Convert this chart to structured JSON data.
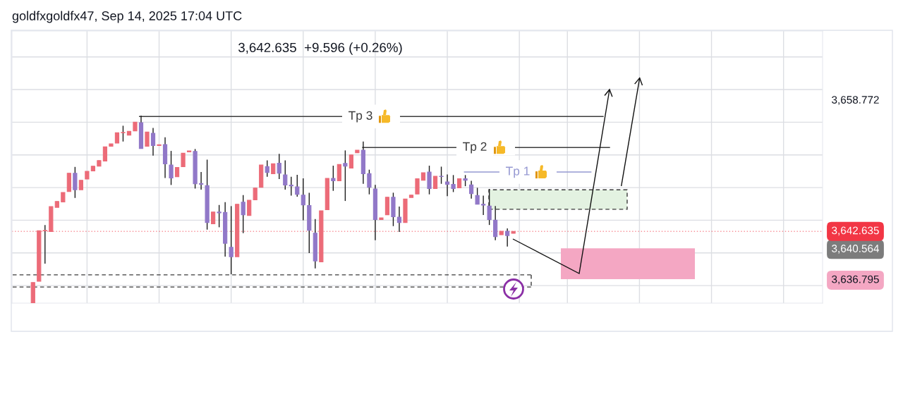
{
  "chart_data": {
    "type": "candlestick",
    "title": "goldfxgoldfx47, Sep 14, 2025 17:04 UTC",
    "annotations": [
      "3,642.635  +9.596 (+0.26%)"
    ],
    "categories": [
      null,
      null,
      null,
      null,
      null,
      null,
      null,
      null,
      null,
      null,
      null,
      null,
      null,
      null,
      null,
      null,
      null,
      null,
      null,
      null,
      null,
      null,
      null,
      null,
      null,
      null,
      null,
      null,
      null,
      null,
      null,
      null,
      null,
      null,
      null,
      null,
      null,
      null,
      null,
      null,
      null,
      null,
      null,
      null,
      null,
      null,
      null,
      null,
      null,
      null,
      null,
      null,
      null,
      null,
      null,
      null,
      null,
      null,
      null,
      null,
      null,
      null,
      null,
      null,
      null,
      null,
      null,
      null,
      null,
      null,
      null,
      null,
      null,
      null,
      null,
      null,
      null,
      null,
      null,
      null,
      null,
      null,
      null,
      null,
      null,
      null,
      null,
      null,
      null,
      null,
      null,
      null,
      null,
      null,
      null,
      null,
      null,
      null,
      null,
      null,
      null,
      null,
      null,
      null,
      null,
      null,
      null,
      null,
      null,
      null,
      null,
      null,
      null,
      null,
      null,
      null,
      null,
      null,
      null,
      null,
      null,
      null,
      null,
      null,
      null,
      null,
      null,
      null,
      null,
      null,
      null,
      null,
      null,
      null,
      null
    ],
    "ohlc": [
      null,
      null,
      null,
      [
        3633.9,
        3636.37,
        3633.9,
        3636.37
      ],
      [
        3636.52,
        3642.71,
        3636.52,
        3642.71
      ],
      [
        3642.7,
        3643.42,
        3638.68,
        3642.75
      ],
      [
        3642.62,
        3645.67,
        3642.62,
        3645.67
      ],
      [
        3645.58,
        3646.3,
        3645.58,
        3646.3
      ],
      [
        3646.24,
        3647.4,
        3646.24,
        3647.4
      ],
      [
        3647.51,
        3649.76,
        3647.51,
        3649.76
      ],
      [
        3649.76,
        3650.53,
        3646.73,
        3647.74
      ],
      [
        3647.74,
        3648.89,
        3647.74,
        3648.89
      ],
      [
        3649.04,
        3649.99,
        3649.04,
        3649.99
      ],
      [
        3650.04,
        3650.62,
        3650.04,
        3650.62
      ],
      [
        3650.62,
        3651.31,
        3650.62,
        3651.31
      ],
      [
        3651.25,
        3652.98,
        3651.25,
        3652.98
      ],
      [
        3653.06,
        3653.35,
        3653.06,
        3653.35
      ],
      [
        3653.44,
        3654.71,
        3653.44,
        3654.71
      ],
      [
        3654.71,
        3655.57,
        3653.64,
        3654.75
      ],
      [
        3654.42,
        3654.88,
        3654.42,
        3654.88
      ],
      [
        3654.94,
        3656.0,
        3654.94,
        3656.0
      ],
      [
        3655.94,
        3656.81,
        3652.78,
        3652.78
      ],
      [
        3653.06,
        3654.79,
        3653.06,
        3654.79
      ],
      [
        3654.65,
        3655.31,
        3651.91,
        3653.15
      ],
      [
        3653.15,
        3653.25,
        3653.15,
        3653.25
      ],
      [
        3653.27,
        3654.16,
        3649.18,
        3650.91
      ],
      [
        3650.76,
        3652.49,
        3648.32,
        3649.18
      ],
      [
        3649.32,
        3650.47,
        3649.32,
        3650.47
      ],
      [
        3650.56,
        3652.2,
        3650.56,
        3652.2
      ],
      [
        3652.38,
        3652.48,
        3652.38,
        3652.48
      ],
      [
        3652.43,
        3652.72,
        3647.88,
        3648.46
      ],
      [
        3648.5,
        3649.9,
        3647.74,
        3648.4
      ],
      [
        3648.23,
        3651.42,
        3642.85,
        3643.71
      ],
      [
        3643.57,
        3645.01,
        3643.57,
        3645.01
      ],
      [
        3645.0,
        3645.87,
        3643.14,
        3644.9
      ],
      [
        3644.95,
        3646.22,
        3639.54,
        3641.18
      ],
      [
        3640.69,
        3645.73,
        3637.38,
        3639.54
      ],
      [
        3639.54,
        3645.96,
        3639.54,
        3645.96
      ],
      [
        3646.22,
        3647.08,
        3642.42,
        3644.66
      ],
      [
        3644.58,
        3646.45,
        3644.58,
        3646.45
      ],
      [
        3646.5,
        3647.94,
        3646.5,
        3647.94
      ],
      [
        3648.03,
        3650.76,
        3648.03,
        3650.76
      ],
      [
        3650.56,
        3651.34,
        3649.32,
        3649.84
      ],
      [
        3649.7,
        3650.91,
        3649.7,
        3650.91
      ],
      [
        3650.99,
        3652.12,
        3649.04,
        3649.76
      ],
      [
        3649.55,
        3651.34,
        3647.74,
        3648.32
      ],
      [
        3648.3,
        3649.32,
        3647.02,
        3648.2
      ],
      [
        3648.09,
        3649.55,
        3646.88,
        3647.17
      ],
      [
        3647.08,
        3649.12,
        3644.0,
        3645.87
      ],
      [
        3645.81,
        3647.37,
        3639.97,
        3642.76
      ],
      [
        3642.42,
        3644.14,
        3638.1,
        3639.02
      ],
      [
        3638.91,
        3645.15,
        3638.91,
        3645.15
      ],
      [
        3645.29,
        3649.12,
        3645.29,
        3649.12
      ],
      [
        3649.12,
        3650.68,
        3647.6,
        3648.83
      ],
      [
        3648.83,
        3650.82,
        3648.83,
        3650.82
      ],
      [
        3650.96,
        3652.55,
        3646.36,
        3650.62
      ],
      [
        3650.39,
        3652.0,
        3650.39,
        3652.0
      ],
      [
        3652.26,
        3652.58,
        3652.26,
        3652.58
      ],
      [
        3652.58,
        3653.64,
        3648.46,
        3649.7
      ],
      [
        3649.7,
        3650.19,
        3647.17,
        3648.03
      ],
      [
        3647.83,
        3648.32,
        3641.55,
        3644.09
      ],
      [
        3644.09,
        3644.29,
        3644.09,
        3644.29
      ],
      [
        3644.66,
        3646.82,
        3644.66,
        3646.82
      ],
      [
        3646.82,
        3647.37,
        3643.28,
        3644.43
      ],
      [
        3644.37,
        3645.67,
        3642.56,
        3643.71
      ],
      [
        3643.71,
        3646.59,
        3643.71,
        3646.59
      ],
      [
        3646.79,
        3647.08,
        3646.79,
        3647.08
      ],
      [
        3647.22,
        3649.09,
        3647.22,
        3649.09
      ],
      [
        3648.89,
        3649.81,
        3648.89,
        3649.81
      ],
      [
        3649.9,
        3650.68,
        3647.17,
        3647.88
      ],
      [
        3647.88,
        3649.38,
        3647.88,
        3649.38
      ],
      [
        3649.38,
        3650.56,
        3648.46,
        3649.35
      ],
      [
        3648.69,
        3649.61,
        3646.94,
        3648.4
      ],
      [
        3648.4,
        3649.53,
        3647.45,
        3647.88
      ],
      [
        3647.97,
        3649.09,
        3647.97,
        3649.09
      ],
      [
        3649.09,
        3649.53,
        3648.17,
        3648.9
      ],
      [
        3648.32,
        3648.83,
        3646.65,
        3647.25
      ],
      [
        3647.02,
        3647.97,
        3645.96,
        3645.96
      ],
      [
        3645.96,
        3647.02,
        3644.63,
        3645.85
      ],
      [
        3645.73,
        3647.83,
        3643.42,
        3644.09
      ],
      [
        3644.0,
        3645.73,
        3641.55,
        3641.99
      ],
      [
        3642.22,
        3642.65,
        3642.22,
        3642.65
      ],
      [
        3642.65,
        3642.99,
        3640.78,
        3642.13
      ],
      [
        3642.4,
        3642.635,
        3642.4,
        3642.635
      ],
      null,
      null,
      null,
      null,
      null,
      null,
      null,
      null,
      null,
      null,
      null,
      null,
      null,
      null,
      null,
      null,
      null,
      null,
      null,
      null,
      null,
      null,
      null,
      null,
      null,
      null,
      null,
      null,
      null,
      null,
      null,
      null,
      null,
      null,
      null,
      null,
      null,
      null,
      null,
      null,
      null,
      null,
      null,
      null,
      null,
      null,
      null,
      null,
      null,
      null,
      null
    ],
    "colors": [
      null,
      null,
      null,
      "#ec6b78",
      "#ec6b78",
      "#ec6b78",
      "#ec6b78",
      "#ec6b78",
      "#ec6b78",
      "#ec6b78",
      "#9178c8",
      "#ec6b78",
      "#ec6b78",
      "#ec6b78",
      "#ec6b78",
      "#ec6b78",
      "#ec6b78",
      "#ec6b78",
      "#ec6b78",
      "#ec6b78",
      "#ec6b78",
      "#9178c8",
      "#ec6b78",
      "#9178c8",
      "#ec6b78",
      "#9178c8",
      "#9178c8",
      "#ec6b78",
      "#ec6b78",
      "#ec6b78",
      "#9178c8",
      "#9178c8",
      "#9178c8",
      "#ec6b78",
      "#9178c8",
      "#9178c8",
      "#9178c8",
      "#ec6b78",
      "#9178c8",
      "#ec6b78",
      "#ec6b78",
      "#ec6b78",
      "#9178c8",
      "#ec6b78",
      "#9178c8",
      "#9178c8",
      "#9178c8",
      "#9178c8",
      "#9178c8",
      "#9178c8",
      "#9178c8",
      "#ec6b78",
      "#ec6b78",
      "#9178c8",
      "#ec6b78",
      "#9178c8",
      "#ec6b78",
      "#ec6b78",
      "#9178c8",
      "#9178c8",
      "#9178c8",
      "#ec6b78",
      "#ec6b78",
      "#9178c8",
      "#9178c8",
      "#ec6b78",
      "#ec6b78",
      "#ec6b78",
      "#ec6b78",
      "#9178c8",
      "#ec6b78",
      "#9178c8",
      "#9178c8",
      "#9178c8",
      "#ec6b78",
      "#9178c8",
      "#9178c8",
      "#9178c8",
      "#9178c8",
      "#9178c8",
      "#9178c8",
      "#ec6b78",
      "#9178c8",
      "#ec6b78",
      null,
      null,
      null,
      null,
      null,
      null,
      null,
      null,
      null,
      null,
      null,
      null,
      null,
      null,
      null,
      null,
      null,
      null,
      null,
      null,
      null,
      null,
      null,
      null,
      null,
      null,
      null,
      null,
      null,
      null,
      null,
      null,
      null,
      null,
      null,
      null,
      null,
      null,
      null,
      null,
      null,
      null,
      null,
      null,
      null,
      null,
      null,
      null,
      null,
      null,
      null
    ],
    "ylim": [
      3633.85,
      3667.17
    ],
    "yticks": [
      {
        "value": 3636,
        "label": null
      },
      {
        "value": 3640,
        "label": null
      },
      {
        "value": 3644,
        "label": null
      },
      {
        "value": 3648,
        "label": null
      },
      {
        "value": 3652,
        "label": null
      },
      {
        "value": 3656,
        "label": null
      },
      {
        "value": 3660,
        "label": null
      },
      {
        "value": 3664,
        "label": null
      },
      {
        "value": 3636.795,
        "label": "3,636.795"
      },
      {
        "value": 3640.564,
        "label": "3,640.564"
      },
      {
        "value": 3658.772,
        "label": "3,658.772"
      }
    ],
    "ref_lines": [
      {
        "axis": "y",
        "value": 3642.635,
        "label": "3,642.635",
        "color": "#f23645",
        "line_style": "dotted"
      },
      {
        "axis": "y",
        "value": 3656.7,
        "label": "Tp 3",
        "color": "#3c3c3c",
        "line_style": "solid"
      },
      {
        "axis": "y",
        "value": 3652.9,
        "label": "Tp 2",
        "color": "#3c3c3c",
        "line_style": "solid"
      },
      {
        "axis": "y",
        "value": 3649.9,
        "label": "Tp 1",
        "color": "#9598d2",
        "line_style": "solid"
      },
      {
        "axis": "y",
        "value": 3637.31,
        "color": "#3a3a3a",
        "line_style": "dashed"
      },
      {
        "axis": "y",
        "value": 3635.82,
        "color": "#3a3a3a",
        "line_style": "dashed"
      }
    ],
    "bands": [
      {
        "axis": "y",
        "from": 3645.34,
        "to": 3647.73,
        "color": "#e3f2e1"
      },
      {
        "axis": "y",
        "from": 3636.795,
        "to": 3640.564,
        "color": "#f4a7c3"
      }
    ],
    "grid": true,
    "tick_labels": "y"
  }
}
